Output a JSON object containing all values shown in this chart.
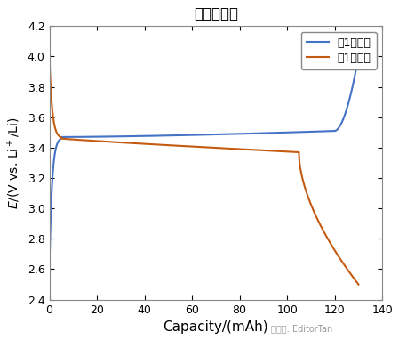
{
  "title": "充放電曲線",
  "xlabel": "Capacity/(mAh)",
  "ylabel_italic": "E",
  "ylabel_rest": "/(V vs. Li⁺/Li)",
  "xlim": [
    0,
    140
  ],
  "ylim": [
    2.4,
    4.2
  ],
  "xticks": [
    0,
    20,
    40,
    60,
    80,
    100,
    120,
    140
  ],
  "yticks": [
    2.4,
    2.6,
    2.8,
    3.0,
    3.2,
    3.4,
    3.6,
    3.8,
    4.0,
    4.2
  ],
  "charge_color": "#4472C4",
  "discharge_color": "#C55A11",
  "legend_charge": "第1次充电",
  "legend_discharge": "第1次放电",
  "background_color": "#ffffff",
  "watermark": "微信号: EditorTan"
}
